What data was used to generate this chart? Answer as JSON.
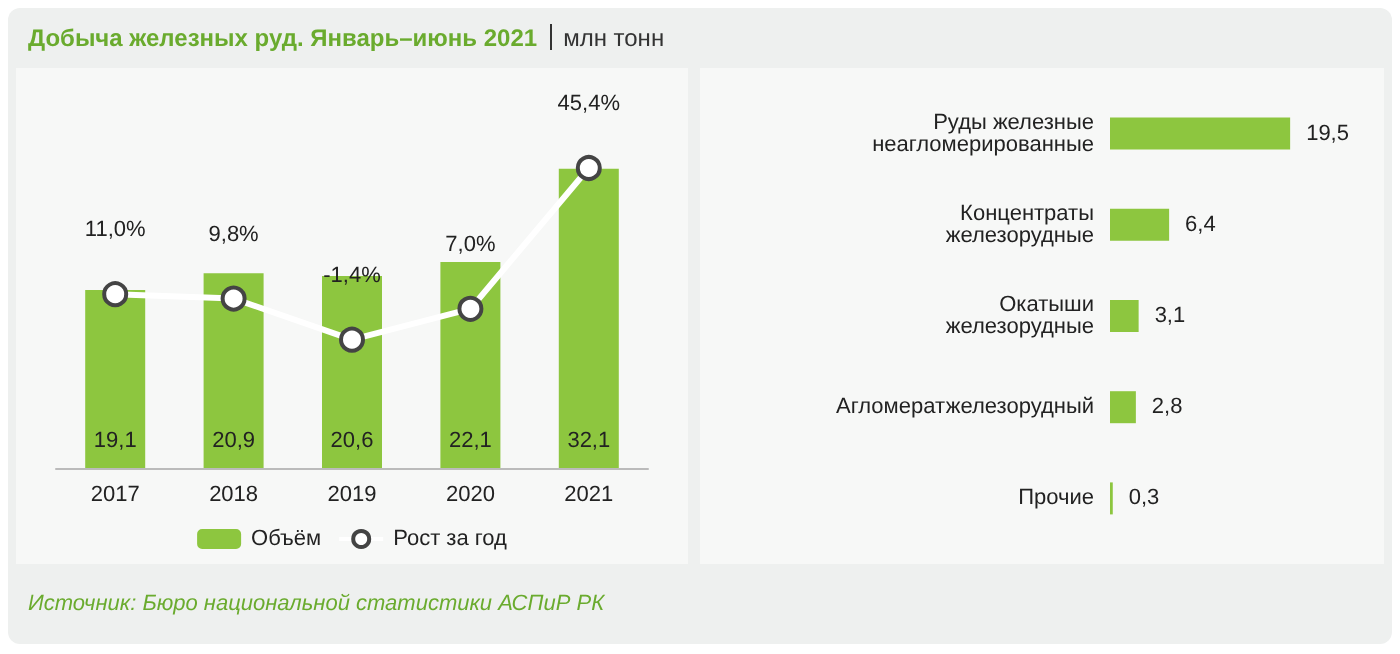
{
  "chart_data": [
    {
      "type": "bar",
      "title": "Добыча железных руд. Январь–июнь 2021",
      "subtitle": "млн тонн",
      "categories": [
        "2017",
        "2018",
        "2019",
        "2020",
        "2021"
      ],
      "series": [
        {
          "name": "Объём",
          "type": "bar",
          "color": "#8dc63f",
          "values": [
            19.1,
            20.9,
            20.6,
            22.1,
            32.1
          ],
          "value_labels": [
            "19,1",
            "20,9",
            "20,6",
            "22,1",
            "32,1"
          ]
        },
        {
          "name": "Рост за год",
          "type": "line",
          "axis": "y2",
          "color": "#ffffff",
          "values": [
            11.0,
            9.8,
            -1.4,
            7.0,
            45.4
          ],
          "value_labels": [
            "11,0%",
            "9,8%",
            "-1,4%",
            "7,0%",
            "45,4%"
          ]
        }
      ],
      "marker": "circle",
      "legend": "bottom",
      "tick_labels": "x",
      "annotations": [
        "Источник: Бюро национальной статистики АСПиР РК"
      ]
    },
    {
      "type": "bar",
      "orientation": "horizontal",
      "categories": [
        "Руды железные неагломерированные",
        "Концентраты железорудные",
        "Окатыши железорудные",
        "Агломератжелезорудный",
        "Прочие"
      ],
      "values": [
        19.5,
        6.4,
        3.1,
        2.8,
        0.3
      ],
      "value_labels": [
        "19,5",
        "6,4",
        "3,1",
        "2,8",
        "0,3"
      ],
      "color": "#8dc63f",
      "tick_labels": "y"
    }
  ]
}
